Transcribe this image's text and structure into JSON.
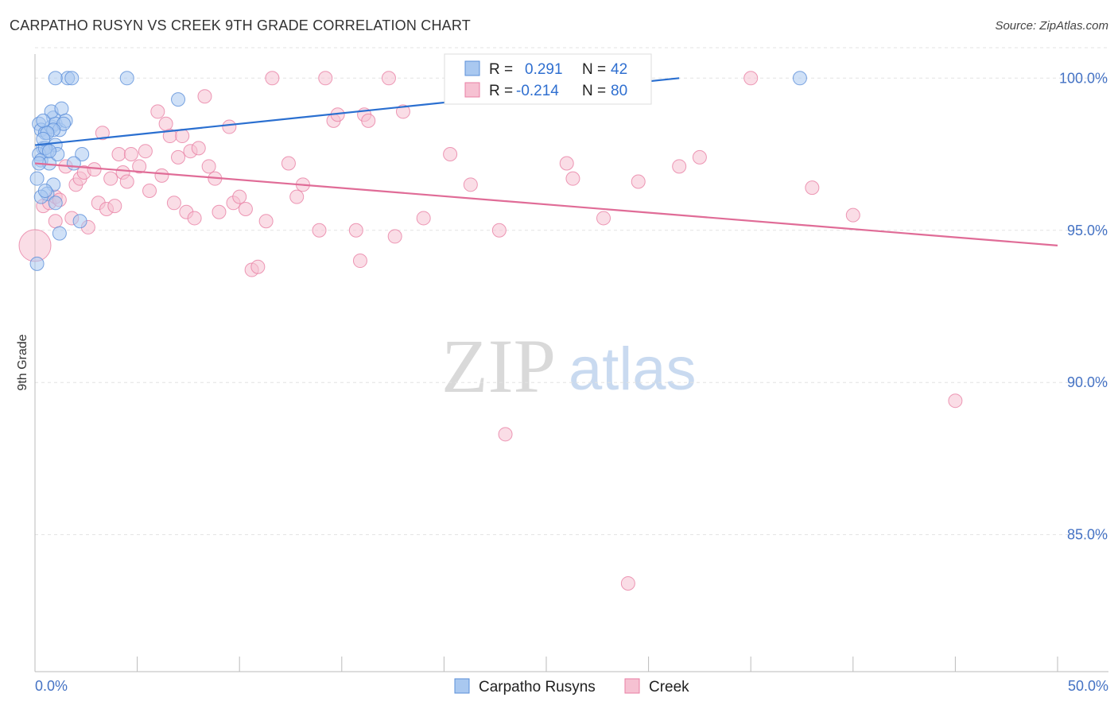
{
  "title": "CARPATHO RUSYN VS CREEK 9TH GRADE CORRELATION CHART",
  "source": "Source: ZipAtlas.com",
  "watermark": {
    "zip": "ZIP",
    "atlas": "atlas"
  },
  "chart_data": {
    "type": "scatter",
    "xlabel": "",
    "ylabel": "9th Grade",
    "xlim": [
      0,
      50
    ],
    "ylim": [
      80.5,
      101
    ],
    "x_tick_labels": [
      "0.0%",
      "50.0%"
    ],
    "y_ticks": [
      85,
      90,
      95,
      100
    ],
    "y_tick_labels": [
      "85.0%",
      "90.0%",
      "95.0%",
      "100.0%"
    ],
    "grid": true,
    "legend_position": "top-center",
    "series": [
      {
        "name": "Carpatho Rusyns",
        "color": "#5b8fd9",
        "fill": "#a9c8f0",
        "R": "0.291",
        "N": "42",
        "trend": {
          "x": [
            0,
            31.5
          ],
          "y": [
            97.8,
            100.0
          ]
        },
        "points": [
          [
            0.2,
            98.5
          ],
          [
            0.3,
            98.3
          ],
          [
            0.5,
            98.2
          ],
          [
            0.8,
            98.4
          ],
          [
            0.9,
            98.7
          ],
          [
            1.0,
            98.5
          ],
          [
            1.2,
            98.3
          ],
          [
            0.4,
            97.7
          ],
          [
            0.6,
            97.6
          ],
          [
            0.2,
            97.5
          ],
          [
            0.3,
            97.3
          ],
          [
            0.7,
            97.2
          ],
          [
            1.0,
            97.8
          ],
          [
            1.1,
            97.5
          ],
          [
            0.5,
            97.7
          ],
          [
            0.8,
            98.9
          ],
          [
            1.3,
            99.0
          ],
          [
            1.5,
            98.6
          ],
          [
            0.1,
            96.7
          ],
          [
            0.9,
            96.5
          ],
          [
            0.6,
            96.2
          ],
          [
            0.3,
            96.1
          ],
          [
            1.0,
            95.9
          ],
          [
            2.3,
            97.5
          ],
          [
            1.9,
            97.2
          ],
          [
            0.1,
            93.9
          ],
          [
            1.2,
            94.9
          ],
          [
            2.2,
            95.3
          ],
          [
            1.6,
            100.0
          ],
          [
            1.8,
            100.0
          ],
          [
            1.0,
            100.0
          ],
          [
            4.5,
            100.0
          ],
          [
            7.0,
            99.3
          ],
          [
            37.4,
            100.0
          ],
          [
            0.4,
            98.6
          ],
          [
            1.4,
            98.5
          ],
          [
            0.9,
            98.3
          ],
          [
            0.6,
            98.2
          ],
          [
            0.4,
            98.0
          ],
          [
            0.7,
            97.6
          ],
          [
            0.2,
            97.2
          ],
          [
            0.5,
            96.3
          ]
        ]
      },
      {
        "name": "Creek",
        "color": "#e97fa4",
        "fill": "#f6c1d2",
        "R": "-0.214",
        "N": "80",
        "trend": {
          "x": [
            0,
            50
          ],
          "y": [
            97.2,
            94.5
          ]
        },
        "points": [
          [
            0.0,
            94.5
          ],
          [
            0.4,
            95.8
          ],
          [
            0.7,
            95.9
          ],
          [
            1.0,
            96.1
          ],
          [
            1.2,
            96.0
          ],
          [
            1.0,
            95.3
          ],
          [
            1.5,
            97.1
          ],
          [
            1.8,
            95.4
          ],
          [
            2.0,
            96.5
          ],
          [
            2.2,
            96.7
          ],
          [
            2.4,
            96.9
          ],
          [
            2.6,
            95.1
          ],
          [
            2.9,
            97.0
          ],
          [
            3.1,
            95.9
          ],
          [
            3.3,
            98.2
          ],
          [
            3.5,
            95.7
          ],
          [
            3.7,
            96.7
          ],
          [
            3.9,
            95.8
          ],
          [
            4.1,
            97.5
          ],
          [
            4.3,
            96.9
          ],
          [
            4.5,
            96.6
          ],
          [
            4.7,
            97.5
          ],
          [
            5.1,
            97.1
          ],
          [
            5.4,
            97.6
          ],
          [
            5.6,
            96.3
          ],
          [
            6.0,
            98.9
          ],
          [
            6.2,
            96.8
          ],
          [
            6.4,
            98.5
          ],
          [
            6.6,
            98.1
          ],
          [
            6.8,
            95.9
          ],
          [
            7.0,
            97.4
          ],
          [
            7.2,
            98.1
          ],
          [
            7.4,
            95.6
          ],
          [
            7.6,
            97.6
          ],
          [
            7.8,
            95.4
          ],
          [
            8.0,
            97.7
          ],
          [
            8.3,
            99.4
          ],
          [
            8.5,
            97.1
          ],
          [
            8.8,
            96.7
          ],
          [
            9.0,
            95.6
          ],
          [
            9.5,
            98.4
          ],
          [
            9.7,
            95.9
          ],
          [
            10.0,
            96.1
          ],
          [
            10.3,
            95.7
          ],
          [
            10.6,
            93.7
          ],
          [
            10.9,
            93.8
          ],
          [
            11.3,
            95.3
          ],
          [
            11.6,
            100.0
          ],
          [
            12.4,
            97.2
          ],
          [
            12.8,
            96.1
          ],
          [
            13.1,
            96.5
          ],
          [
            13.9,
            95.0
          ],
          [
            14.2,
            100.0
          ],
          [
            14.6,
            98.6
          ],
          [
            14.8,
            98.8
          ],
          [
            15.7,
            95.0
          ],
          [
            15.9,
            94.0
          ],
          [
            16.1,
            98.8
          ],
          [
            16.3,
            98.6
          ],
          [
            17.3,
            100.0
          ],
          [
            17.6,
            94.8
          ],
          [
            18.0,
            98.9
          ],
          [
            19.0,
            95.4
          ],
          [
            20.3,
            97.5
          ],
          [
            21.3,
            96.5
          ],
          [
            23.0,
            88.3
          ],
          [
            23.5,
            100.0
          ],
          [
            24.0,
            100.0
          ],
          [
            26.0,
            97.2
          ],
          [
            26.3,
            96.7
          ],
          [
            27.8,
            95.4
          ],
          [
            29.0,
            83.4
          ],
          [
            29.5,
            96.6
          ],
          [
            31.5,
            97.1
          ],
          [
            32.5,
            97.4
          ],
          [
            35.0,
            100.0
          ],
          [
            38.0,
            96.4
          ],
          [
            40.0,
            95.5
          ],
          [
            45.0,
            89.4
          ],
          [
            22.7,
            95.0
          ]
        ]
      }
    ]
  },
  "legend": {
    "r_label": "R =",
    "n_label": "N =",
    "rows": [
      {
        "r": "0.291",
        "n": "42"
      },
      {
        "r": "-0.214",
        "n": "80"
      }
    ]
  },
  "bottom_legend": [
    "Carpatho Rusyns",
    "Creek"
  ]
}
